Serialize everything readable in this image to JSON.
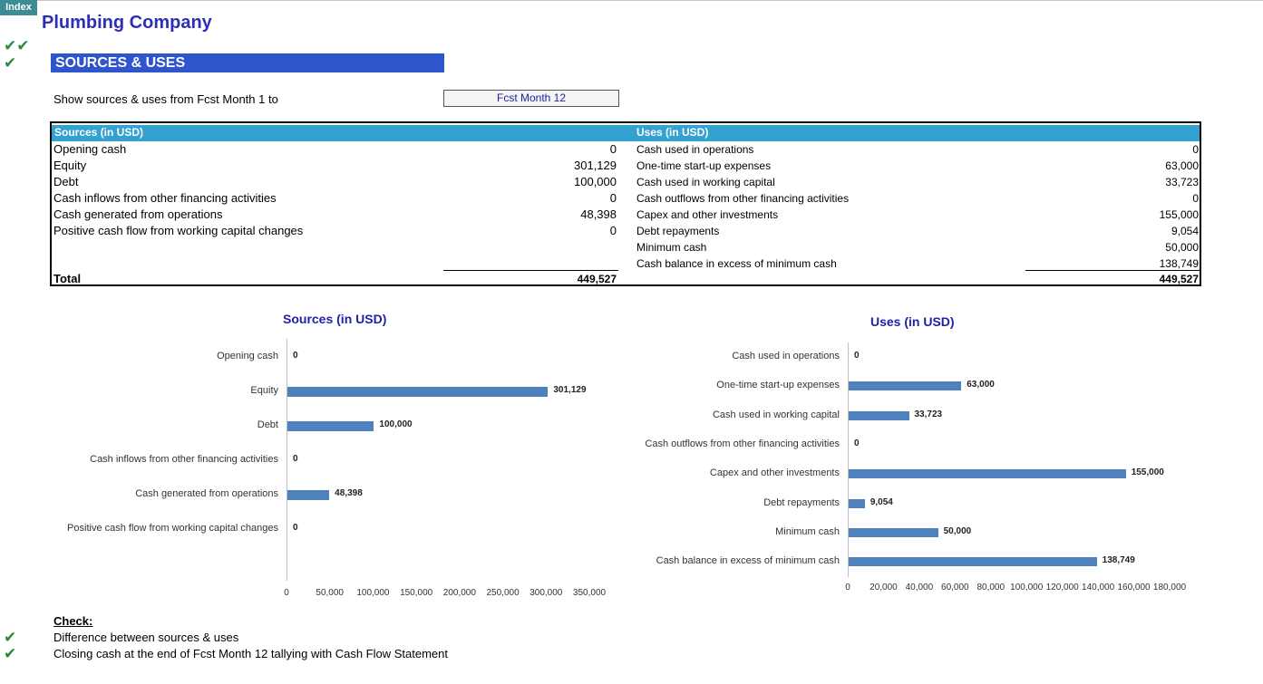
{
  "index_button": "Index",
  "company_title": "Plumbing Company",
  "section_title": "SOURCES & USES",
  "show_label": "Show sources & uses from Fcst Month 1 to",
  "month_selected": "Fcst Month 12",
  "colors": {
    "banner": "#2e55cc",
    "table_header": "#33a2d0",
    "bar": "#4f81bd",
    "check": "#2a8a3a",
    "title": "#2e2eb8"
  },
  "icons": {
    "check_double": "check-double-icon",
    "check": "check-icon"
  },
  "sources": {
    "header": "Sources (in USD)",
    "rows": [
      {
        "label": "Opening cash",
        "value": "0"
      },
      {
        "label": "Equity",
        "value": "301,129"
      },
      {
        "label": "Debt",
        "value": "100,000"
      },
      {
        "label": "Cash inflows from other financing activities",
        "value": "0"
      },
      {
        "label": "Cash generated from operations",
        "value": "48,398"
      },
      {
        "label": "Positive cash flow from working capital changes",
        "value": "0"
      }
    ],
    "total_label": "Total",
    "total_value": "449,527"
  },
  "uses": {
    "header": "Uses (in USD)",
    "rows": [
      {
        "label": "Cash used in operations",
        "value": "0"
      },
      {
        "label": "One-time start-up expenses",
        "value": "63,000"
      },
      {
        "label": "Cash used in working capital",
        "value": "33,723"
      },
      {
        "label": "Cash outflows from other  financing activities",
        "value": "0"
      },
      {
        "label": "Capex and other investments",
        "value": "155,000"
      },
      {
        "label": "Debt repayments",
        "value": "9,054"
      },
      {
        "label": "Minimum cash",
        "value": "50,000"
      },
      {
        "label": "Cash balance in excess of minimum cash",
        "value": "138,749"
      }
    ],
    "total_value": "449,527"
  },
  "chart_data": [
    {
      "type": "bar",
      "orientation": "horizontal",
      "title": "Sources (in USD)",
      "categories": [
        "Opening cash",
        "Equity",
        "Debt",
        "Cash inflows from other financing activities",
        "Cash generated from operations",
        "Positive cash flow from working capital changes"
      ],
      "values": [
        0,
        301129,
        100000,
        0,
        48398,
        0
      ],
      "value_labels": [
        "0",
        "301,129",
        "100,000",
        "0",
        "48,398",
        "0"
      ],
      "xlim": [
        0,
        350000
      ],
      "ticks": [
        "0",
        "50,000",
        "100,000",
        "150,000",
        "200,000",
        "250,000",
        "300,000",
        "350,000"
      ],
      "grid": false
    },
    {
      "type": "bar",
      "orientation": "horizontal",
      "title": "Uses (in USD)",
      "categories": [
        "Cash used in operations",
        "One-time start-up expenses",
        "Cash used in working capital",
        "Cash outflows from other  financing activities",
        "Capex and other investments",
        "Debt repayments",
        "Minimum cash",
        "Cash balance in excess of minimum cash"
      ],
      "values": [
        0,
        63000,
        33723,
        0,
        155000,
        9054,
        50000,
        138749
      ],
      "value_labels": [
        "0",
        "63,000",
        "33,723",
        "0",
        "155,000",
        "9,054",
        "50,000",
        "138,749"
      ],
      "xlim": [
        0,
        180000
      ],
      "ticks": [
        "0",
        "20,000",
        "40,000",
        "60,000",
        "80,000",
        "100,000",
        "120,000",
        "140,000",
        "160,000",
        "180,000"
      ],
      "grid": false
    }
  ],
  "checks": {
    "title": "Check:",
    "items": [
      "Difference between sources & uses",
      "Closing cash at the end of Fcst Month 12 tallying with Cash Flow Statement"
    ]
  }
}
